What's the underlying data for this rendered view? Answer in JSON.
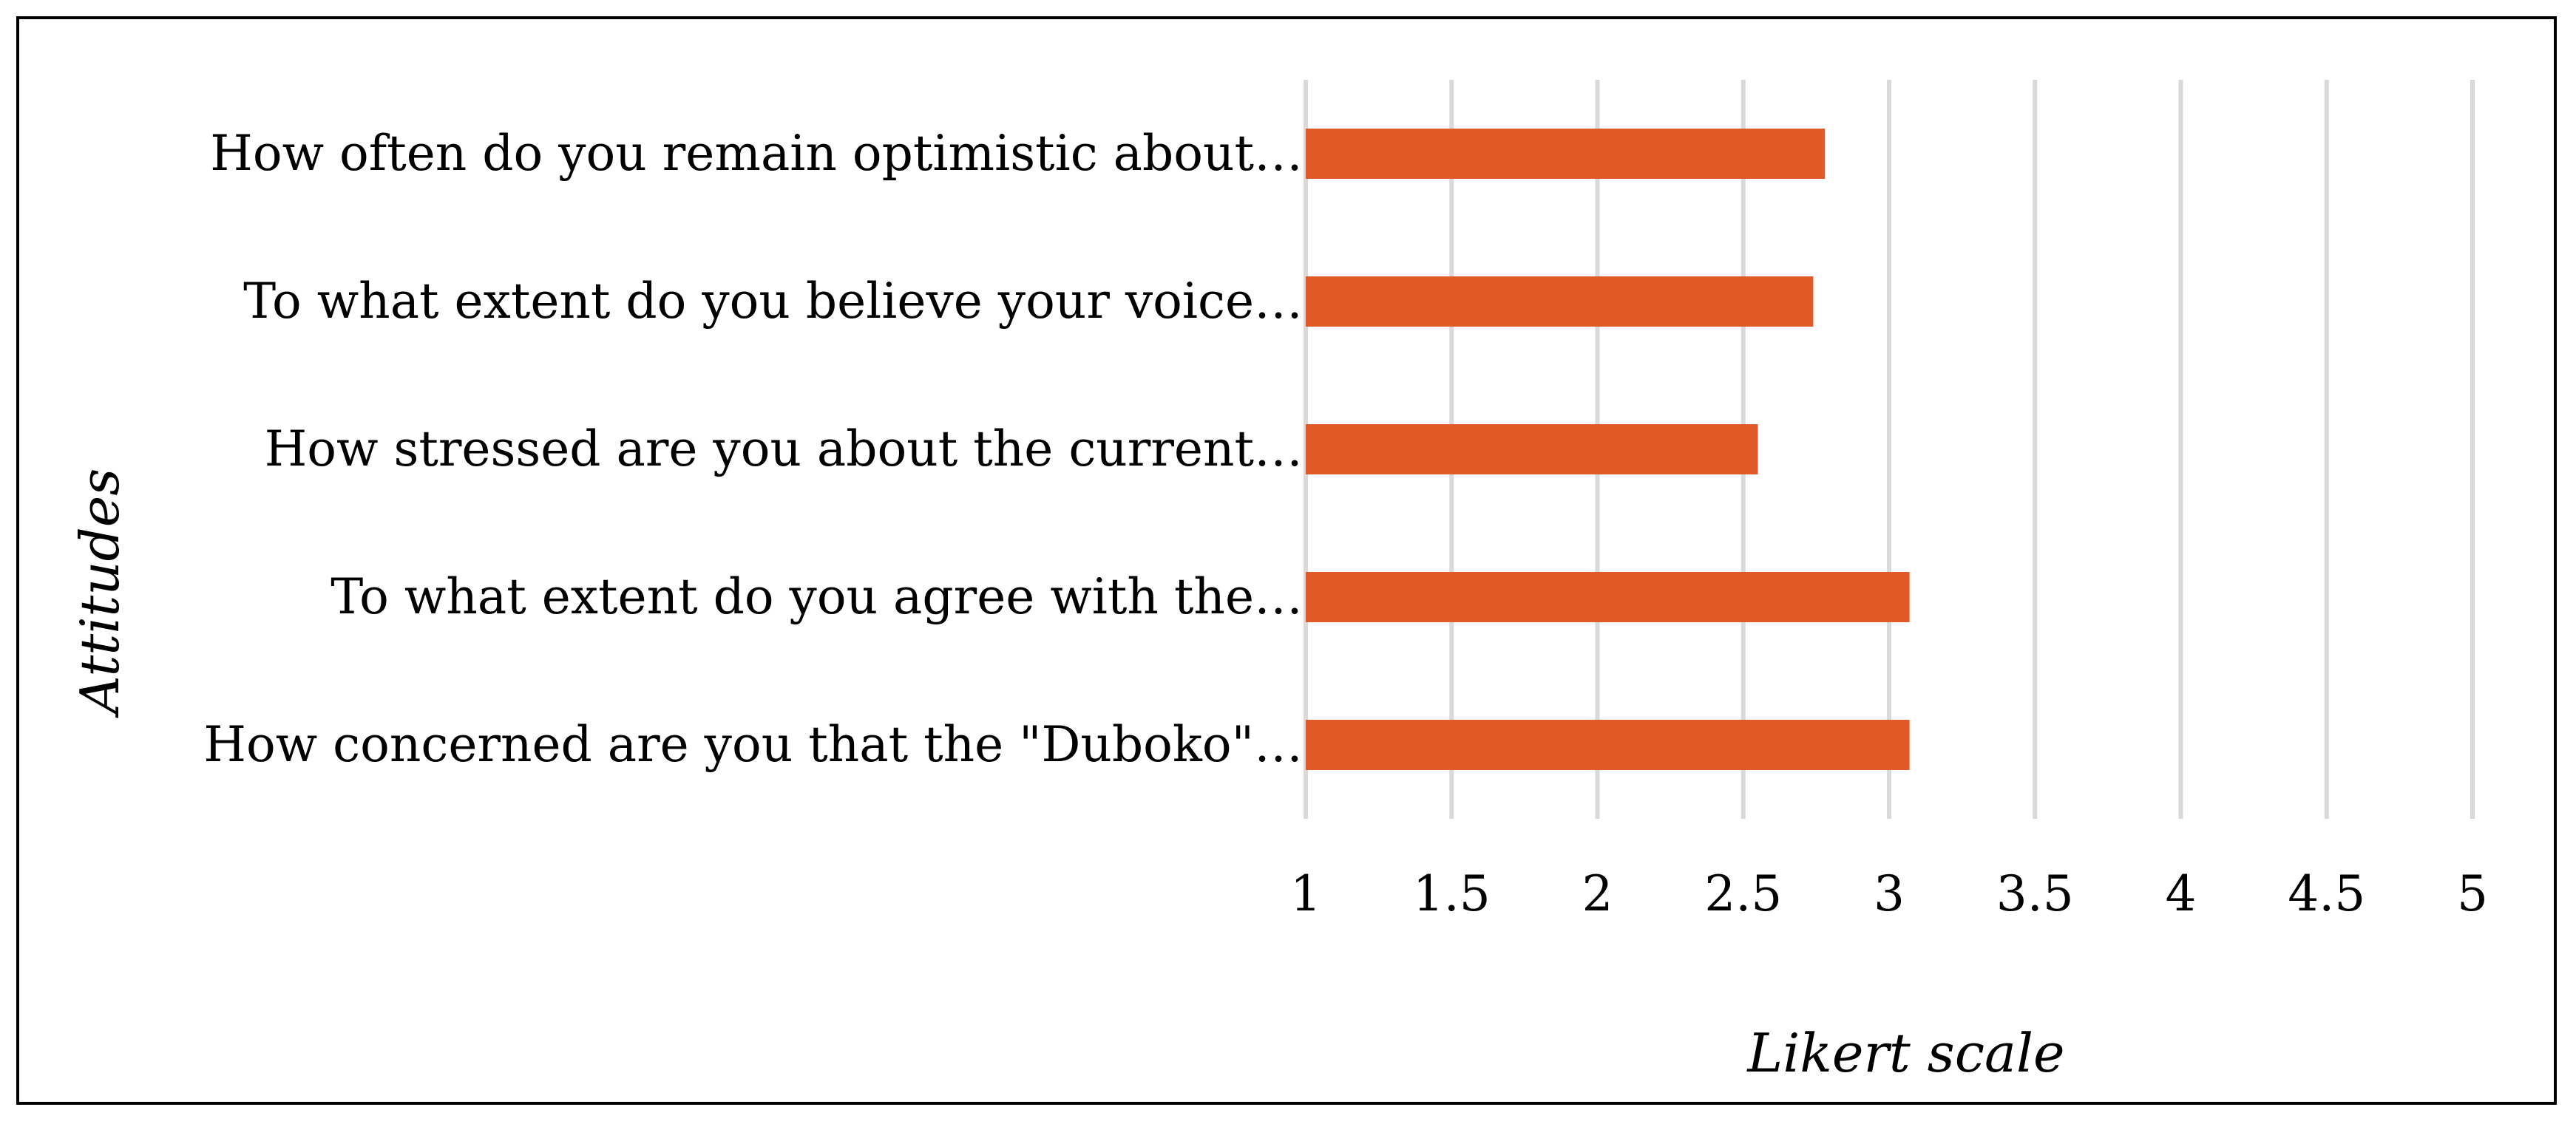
{
  "chart_data": {
    "type": "bar",
    "orientation": "horizontal",
    "categories": [
      "How often do you remain optimistic about…",
      "To what extent do you believe your voice…",
      "How stressed are you about the current…",
      "To what extent do you agree with the…",
      "How concerned are you that the \"Duboko\"…"
    ],
    "values": [
      2.78,
      2.74,
      2.55,
      3.07,
      3.07
    ],
    "xlabel": "Likert scale",
    "ylabel": "Attitudes",
    "xlim": [
      1,
      5
    ],
    "xticks": [
      "1",
      "1.5",
      "2",
      "2.5",
      "3",
      "3.5",
      "4",
      "4.5",
      "5"
    ],
    "grid": "vertical",
    "legend": "none",
    "bar_color": "#e05a28"
  }
}
